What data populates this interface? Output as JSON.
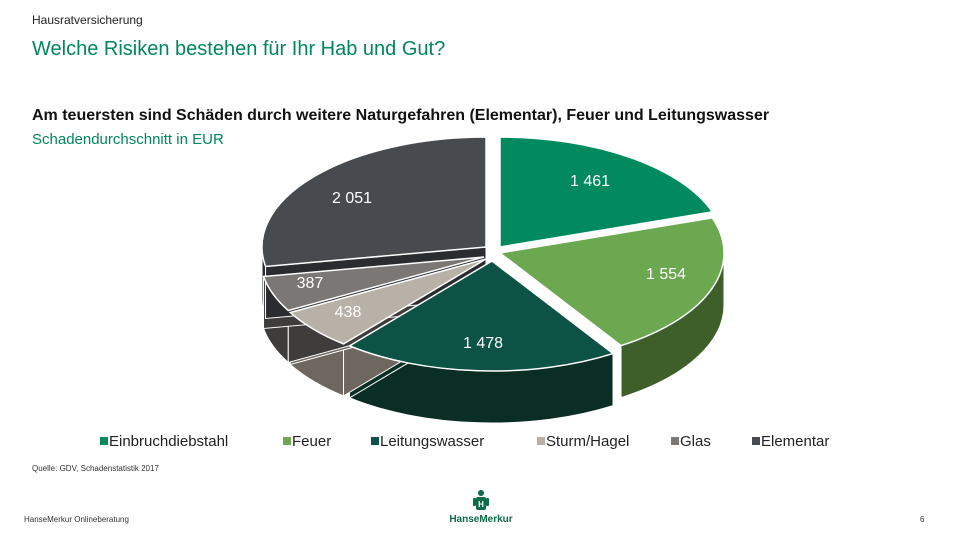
{
  "header": {
    "top_label": "Hausratversicherung",
    "title": "Welche Risiken bestehen für Ihr Hab und Gut?",
    "subtitle": "Am teuersten sind Schäden durch weitere Naturgefahren (Elementar), Feuer und Leitungswasser",
    "unit_label": "Schadendurchschnitt in EUR"
  },
  "chart_data": {
    "type": "pie",
    "title": "",
    "style": "3d-exploded",
    "legend_position": "bottom",
    "slices": [
      {
        "name": "Einbruchdiebstahl",
        "value": 1461,
        "label": "1 461",
        "color": "#008a5e",
        "side_color": "#005f40"
      },
      {
        "name": "Feuer",
        "value": 1554,
        "label": "1 554",
        "color": "#6ba84f",
        "side_color": "#3e5e2a"
      },
      {
        "name": "Leitungswasser",
        "value": 1478,
        "label": "1 478",
        "color": "#0c5245",
        "side_color": "#0a2e23"
      },
      {
        "name": "Sturm/Hagel",
        "value": 438,
        "label": "438",
        "color": "#b8b1a8",
        "side_color": "#6e675f"
      },
      {
        "name": "Glas",
        "value": 387,
        "label": "387",
        "color": "#7a7775",
        "side_color": "#3f3d3b"
      },
      {
        "name": "Elementar",
        "value": 2051,
        "label": "2 051",
        "color": "#474a4e",
        "side_color": "#2a2c2f"
      }
    ]
  },
  "footer": {
    "source": "Quelle: GDV, Schadenstatistik 2017",
    "left_text": "HanseMerkur Onlineberatung",
    "logo_text": "HanseMerkur",
    "page_number": "6"
  }
}
